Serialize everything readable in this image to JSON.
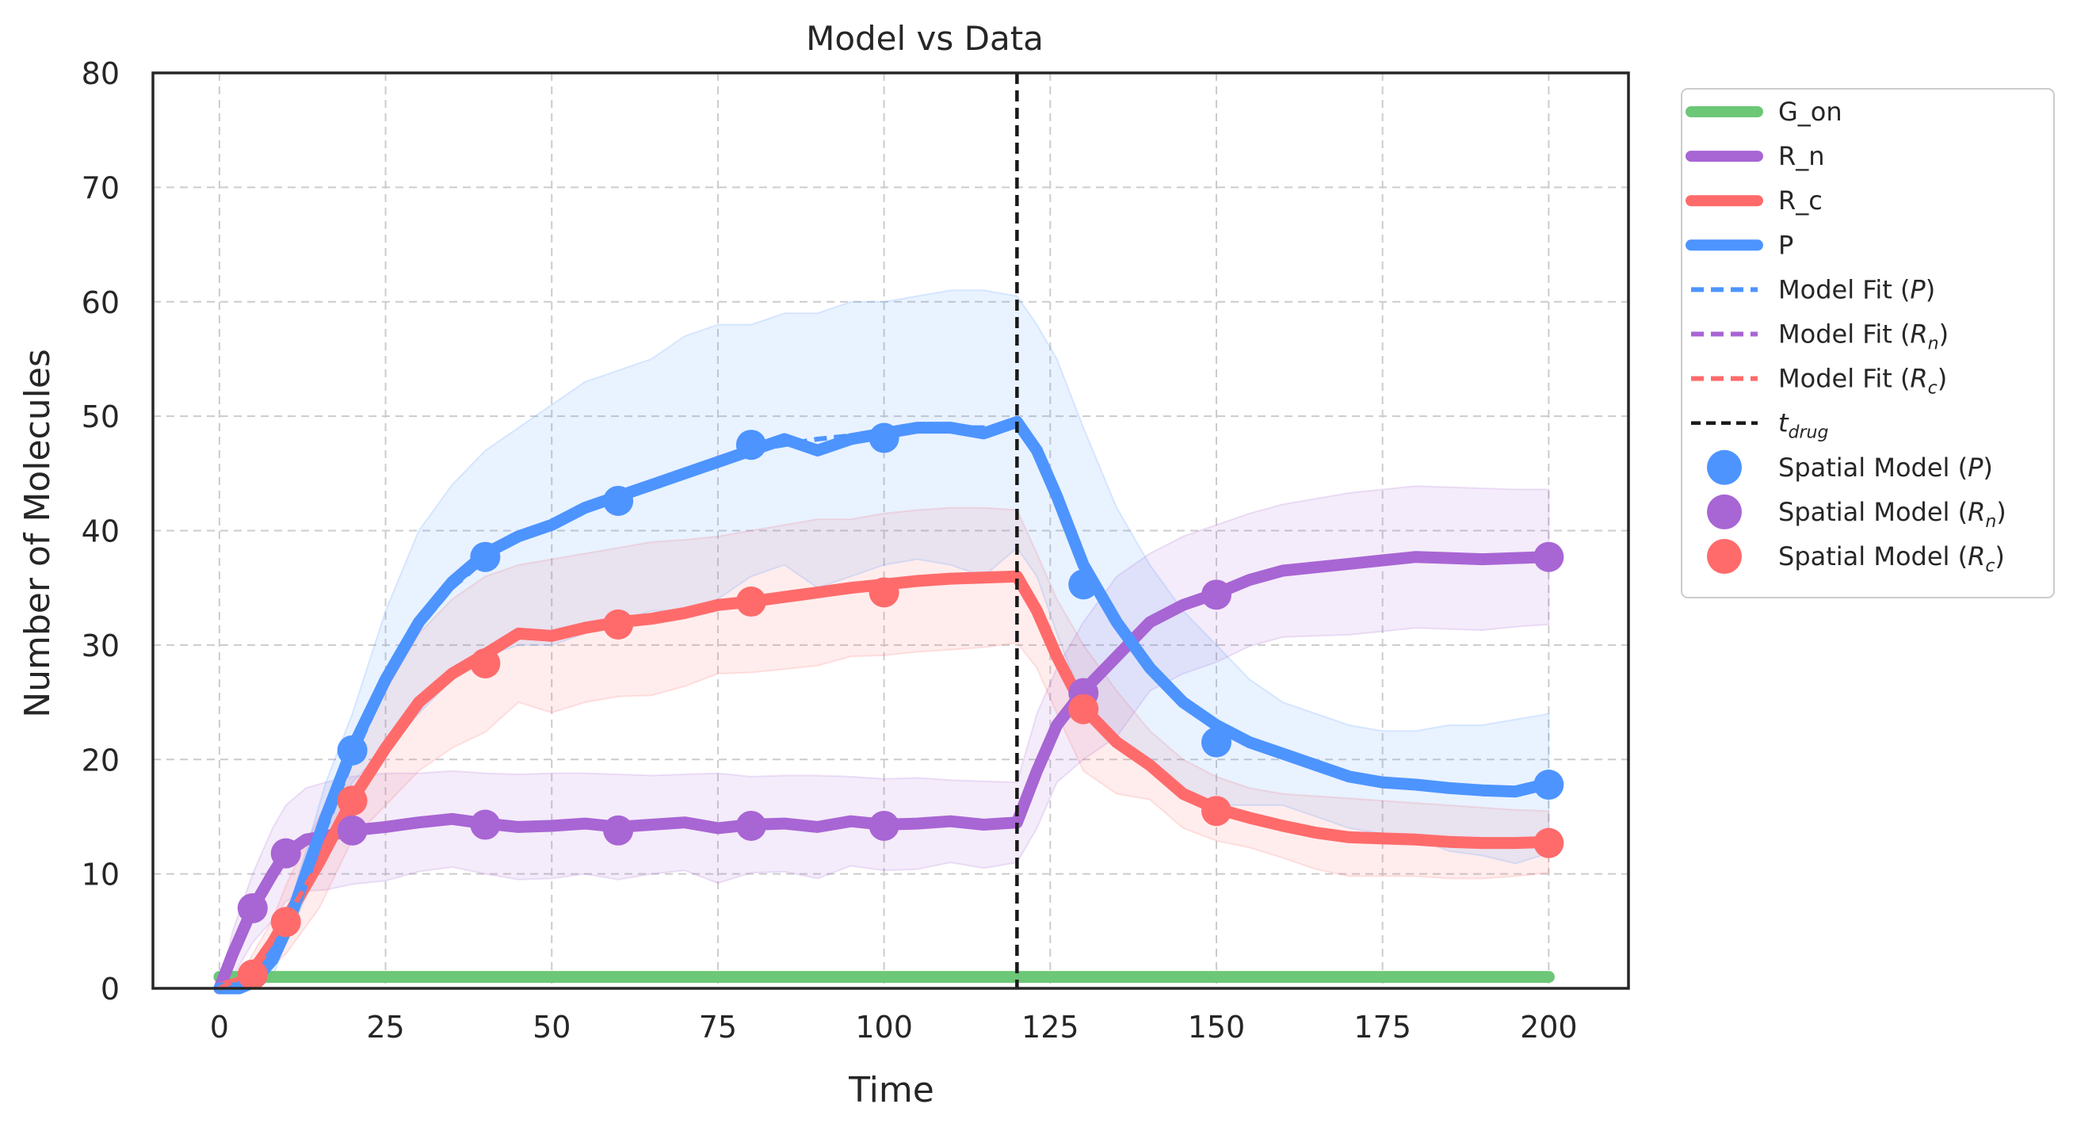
{
  "chart_data": {
    "type": "line",
    "title": "Model vs Data",
    "xlabel": "Time",
    "ylabel": "Number of Molecules",
    "xlim": [
      -10,
      212
    ],
    "ylim": [
      0,
      80
    ],
    "xticks": [
      0,
      25,
      50,
      75,
      100,
      125,
      150,
      175,
      200
    ],
    "yticks": [
      0,
      10,
      20,
      30,
      40,
      50,
      60,
      70,
      80
    ],
    "grid": true,
    "legend_position": "outside-right",
    "colors": {
      "G_on": "#6cc777",
      "R_n": "#a865d4",
      "R_c": "#ff6b6b",
      "P": "#4d94ff",
      "t_drug": "#1a1a1a"
    },
    "t_drug": 120,
    "series": [
      {
        "name": "G_on",
        "role": "line",
        "color": "#6cc777",
        "x": [
          0,
          200
        ],
        "y": [
          1,
          1
        ]
      },
      {
        "name": "R_n",
        "role": "line",
        "color": "#a865d4",
        "x": [
          0,
          2,
          5,
          8,
          10,
          13,
          16,
          20,
          25,
          30,
          35,
          40,
          45,
          50,
          55,
          60,
          65,
          70,
          75,
          80,
          85,
          90,
          95,
          100,
          105,
          110,
          115,
          120,
          123,
          126,
          130,
          135,
          140,
          145,
          150,
          155,
          160,
          165,
          170,
          175,
          180,
          185,
          190,
          195,
          200
        ],
        "y": [
          0,
          3,
          7,
          10,
          11.8,
          13,
          13.3,
          13.8,
          14.1,
          14.5,
          14.8,
          14.4,
          14.1,
          14.2,
          14.4,
          14.1,
          14.3,
          14.5,
          14,
          14.3,
          14.4,
          14.1,
          14.6,
          14.3,
          14.4,
          14.6,
          14.3,
          14.5,
          19,
          23,
          26,
          29,
          32,
          33.5,
          34.5,
          35.7,
          36.5,
          36.8,
          37.1,
          37.4,
          37.7,
          37.6,
          37.5,
          37.6,
          37.7
        ],
        "band_upper": [
          0,
          5,
          10,
          14,
          16,
          17.5,
          18,
          18.5,
          18.8,
          18.8,
          19,
          18.8,
          18.7,
          18.8,
          18.8,
          18.7,
          18.6,
          18.7,
          18.8,
          18.5,
          18.6,
          18.6,
          18.5,
          18.3,
          18.4,
          18.2,
          18.1,
          18,
          24,
          28,
          32,
          36,
          38,
          39.5,
          40.5,
          41.5,
          42.3,
          42.8,
          43.3,
          43.6,
          43.9,
          43.8,
          43.7,
          43.6,
          43.6
        ]
      },
      {
        "name": "R_c",
        "role": "line",
        "color": "#ff6b6b",
        "x": [
          0,
          3,
          5,
          8,
          10,
          15,
          20,
          25,
          30,
          35,
          40,
          45,
          50,
          55,
          60,
          65,
          70,
          75,
          80,
          85,
          90,
          95,
          100,
          105,
          110,
          115,
          120,
          123,
          126,
          130,
          135,
          140,
          145,
          150,
          155,
          160,
          165,
          170,
          175,
          180,
          185,
          190,
          195,
          200
        ],
        "y": [
          0,
          0.5,
          1.5,
          4,
          6,
          11,
          16.5,
          21,
          25,
          27.5,
          29.2,
          31,
          30.8,
          31.5,
          32,
          32.3,
          32.8,
          33.5,
          33.8,
          34.2,
          34.6,
          35,
          35.3,
          35.6,
          35.8,
          35.9,
          36,
          33,
          29,
          24.5,
          21.5,
          19.5,
          17,
          15.7,
          14.9,
          14.2,
          13.6,
          13.2,
          13.1,
          13,
          12.8,
          12.7,
          12.7,
          12.8
        ],
        "band_upper": [
          0,
          1,
          3,
          6,
          9,
          15,
          20,
          26,
          31,
          34,
          36,
          37,
          37.5,
          38,
          38.5,
          39,
          39.2,
          39.5,
          40,
          40.5,
          41,
          41,
          41.5,
          41.8,
          42,
          42,
          41.8,
          38,
          34,
          30,
          26,
          22.5,
          20,
          18.5,
          17.5,
          17,
          16.8,
          16.6,
          16.4,
          16.2,
          16,
          15.8,
          15.6,
          15.5
        ]
      },
      {
        "name": "P",
        "role": "line",
        "color": "#4d94ff",
        "x": [
          0,
          3,
          5,
          8,
          10,
          13,
          16,
          20,
          25,
          30,
          35,
          40,
          45,
          50,
          55,
          60,
          65,
          70,
          75,
          80,
          85,
          90,
          95,
          100,
          105,
          110,
          115,
          120,
          123,
          126,
          130,
          135,
          140,
          145,
          150,
          155,
          160,
          165,
          170,
          175,
          180,
          185,
          190,
          195,
          200
        ],
        "y": [
          0,
          0,
          0.5,
          2.5,
          5,
          10,
          15,
          21,
          27,
          32,
          35.5,
          38,
          39.5,
          40.5,
          42,
          43,
          44,
          45,
          46,
          47,
          48,
          47,
          48,
          48.5,
          49,
          49,
          48.5,
          49.5,
          47,
          43,
          37,
          32,
          28,
          25,
          23,
          21.5,
          20.5,
          19.5,
          18.5,
          18,
          17.8,
          17.5,
          17.3,
          17.2,
          17.9
        ],
        "band_upper": [
          0,
          0.5,
          1.5,
          4,
          6,
          12,
          18,
          24,
          33,
          40,
          44,
          47,
          49,
          51,
          53,
          54,
          55,
          57,
          58,
          58,
          59,
          59,
          60,
          60,
          60.5,
          61,
          61,
          60.5,
          58,
          55,
          49,
          42,
          37,
          33,
          30,
          27,
          25,
          24,
          23,
          22.5,
          22.5,
          23,
          23,
          23.5,
          24
        ]
      },
      {
        "name": "Model Fit (P)",
        "role": "fit",
        "color": "#4d94ff",
        "x": [
          0,
          5,
          10,
          15,
          20,
          25,
          30,
          35,
          40,
          45,
          50,
          55,
          60,
          65,
          70,
          75,
          80,
          85,
          90,
          95,
          100,
          105,
          110,
          115,
          120
        ],
        "y": [
          0,
          1,
          5,
          12.5,
          20,
          26.5,
          31.5,
          35,
          37.5,
          39.5,
          40.8,
          41.8,
          43,
          44,
          45,
          46,
          47,
          47.5,
          48,
          48.3,
          48.6,
          48.8,
          49,
          49,
          49.2
        ]
      },
      {
        "name": "Model Fit (R_n)",
        "role": "fit",
        "color": "#a865d4",
        "x": [
          150,
          155,
          160,
          165,
          170,
          175,
          180,
          185,
          190,
          195,
          200
        ],
        "y": [
          34.5,
          35.5,
          36.2,
          36.6,
          37,
          37.3,
          37.5,
          37.6,
          37.6,
          37.6,
          37.7
        ]
      },
      {
        "name": "Model Fit (R_c)",
        "role": "fit",
        "color": "#ff6b6b",
        "x": [
          0,
          5,
          10,
          15,
          20,
          25,
          30
        ],
        "y": [
          0,
          1.5,
          6,
          11,
          16.5,
          21,
          25
        ]
      },
      {
        "name": "Spatial Model (P)",
        "role": "points",
        "color": "#4d94ff",
        "x": [
          20,
          40,
          60,
          80,
          100,
          130,
          150,
          200
        ],
        "y": [
          20.8,
          37.7,
          42.6,
          47.5,
          48.1,
          35.3,
          21.5,
          17.8
        ]
      },
      {
        "name": "Spatial Model (R_n)",
        "role": "points",
        "color": "#a865d4",
        "x": [
          5,
          10,
          20,
          40,
          60,
          80,
          100,
          130,
          150,
          200
        ],
        "y": [
          7,
          11.8,
          13.8,
          14.3,
          13.8,
          14.2,
          14.2,
          25.8,
          34.4,
          37.7
        ]
      },
      {
        "name": "Spatial Model (R_c)",
        "role": "points",
        "color": "#ff6b6b",
        "x": [
          5,
          10,
          20,
          40,
          60,
          80,
          100,
          130,
          150,
          200
        ],
        "y": [
          1.2,
          5.8,
          16.4,
          28.4,
          31.8,
          33.8,
          34.6,
          24.4,
          15.5,
          12.7
        ]
      }
    ]
  },
  "legend": [
    {
      "kind": "line",
      "label": "G_on",
      "sub": "",
      "color": "#6cc777",
      "italic": false
    },
    {
      "kind": "line",
      "label": "R_n",
      "sub": "",
      "color": "#a865d4",
      "italic": false
    },
    {
      "kind": "line",
      "label": "R_c",
      "sub": "",
      "color": "#ff6b6b",
      "italic": false
    },
    {
      "kind": "line",
      "label": "P",
      "sub": "",
      "color": "#4d94ff",
      "italic": false
    },
    {
      "kind": "dash",
      "label": "Model Fit (",
      "var": "P",
      "sub": "",
      "close": ")",
      "color": "#4d94ff"
    },
    {
      "kind": "dash",
      "label": "Model Fit (",
      "var": "R",
      "sub": "n",
      "close": ")",
      "color": "#a865d4"
    },
    {
      "kind": "dash",
      "label": "Model Fit (",
      "var": "R",
      "sub": "c",
      "close": ")",
      "color": "#ff6b6b"
    },
    {
      "kind": "vline",
      "label": "",
      "var": "t",
      "sub": "drug",
      "close": "",
      "color": "#1a1a1a"
    },
    {
      "kind": "dot",
      "label": "Spatial Model (",
      "var": "P",
      "sub": "",
      "close": ")",
      "color": "#4d94ff"
    },
    {
      "kind": "dot",
      "label": "Spatial Model (",
      "var": "R",
      "sub": "n",
      "close": ")",
      "color": "#a865d4"
    },
    {
      "kind": "dot",
      "label": "Spatial Model (",
      "var": "R",
      "sub": "c",
      "close": ")",
      "color": "#ff6b6b"
    }
  ]
}
